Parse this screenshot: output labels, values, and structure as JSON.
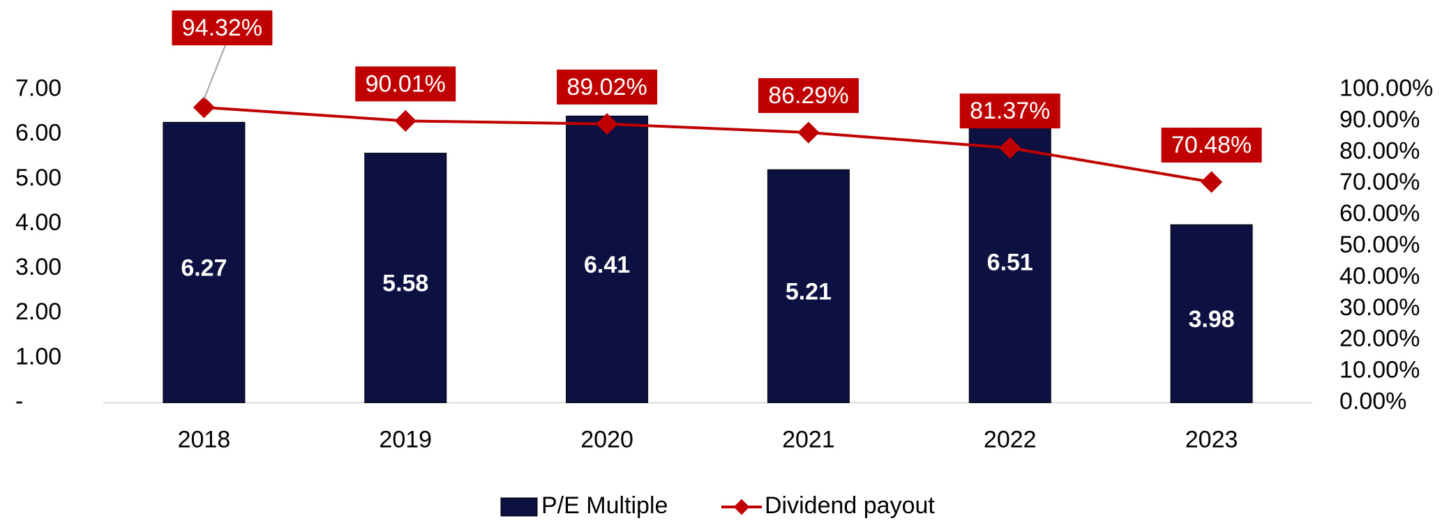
{
  "chart_data": {
    "type": "bar_line",
    "categories": [
      "2018",
      "2019",
      "2020",
      "2021",
      "2022",
      "2023"
    ],
    "series": [
      {
        "name": "P/E Multiple",
        "type": "bar",
        "color": "#0c1141",
        "values": [
          6.27,
          5.58,
          6.41,
          5.21,
          6.51,
          3.98
        ]
      },
      {
        "name": "Dividend payout",
        "type": "line",
        "axis": "y2",
        "color": "#c00000",
        "values": [
          94.32,
          90.01,
          89.02,
          86.29,
          81.37,
          70.48
        ],
        "value_labels": [
          "94.32%",
          "90.01%",
          "89.02%",
          "86.29%",
          "81.37%",
          "70.48%"
        ]
      }
    ],
    "ylim": [
      0,
      7
    ],
    "yticks": [
      {
        "value": 0,
        "label": "-"
      },
      {
        "value": 1,
        "label": "1.00"
      },
      {
        "value": 2,
        "label": "2.00"
      },
      {
        "value": 3,
        "label": "3.00"
      },
      {
        "value": 4,
        "label": "4.00"
      },
      {
        "value": 5,
        "label": "5.00"
      },
      {
        "value": 6,
        "label": "6.00"
      },
      {
        "value": 7,
        "label": "7.00"
      }
    ],
    "y2lim": [
      0,
      100
    ],
    "y2ticks": [
      {
        "value": 0,
        "label": "0.00%"
      },
      {
        "value": 10,
        "label": "10.00%"
      },
      {
        "value": 20,
        "label": "20.00%"
      },
      {
        "value": 30,
        "label": "30.00%"
      },
      {
        "value": 40,
        "label": "40.00%"
      },
      {
        "value": 50,
        "label": "50.00%"
      },
      {
        "value": 60,
        "label": "60.00%"
      },
      {
        "value": 70,
        "label": "70.00%"
      },
      {
        "value": 80,
        "label": "80.00%"
      },
      {
        "value": 90,
        "label": "90.00%"
      },
      {
        "value": 100,
        "label": "100.00%"
      }
    ],
    "legend": "bottom"
  }
}
